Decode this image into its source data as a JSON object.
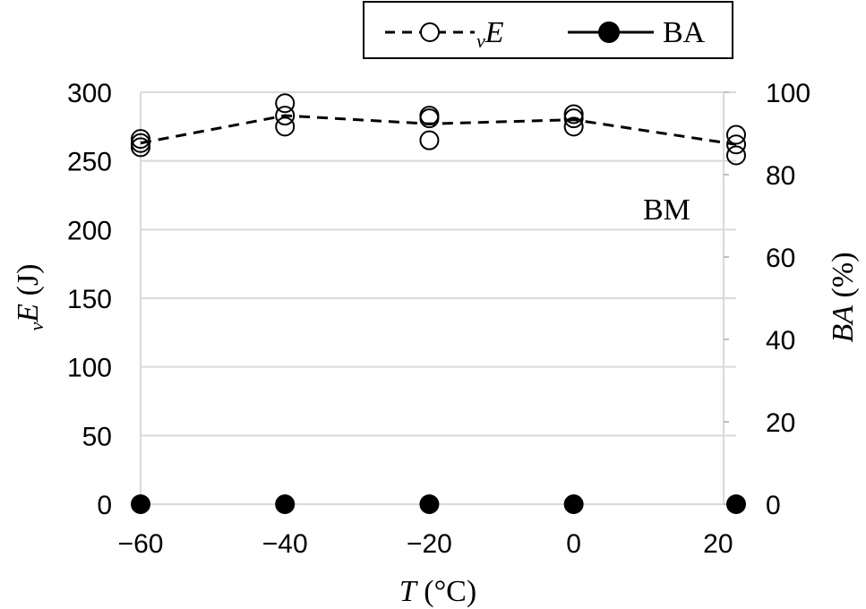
{
  "chart_data": {
    "type": "scatter",
    "annotation": "BM",
    "grid": true,
    "legend_position": "top-right",
    "x_axis": {
      "var": "T",
      "unit": " (°C)",
      "lim": [
        -60,
        22.5
      ],
      "ticks": [
        -60,
        -40,
        -20,
        0,
        20
      ],
      "tick_labels": [
        "−60",
        "−40",
        "−20",
        "0",
        "20"
      ]
    },
    "y_left": {
      "sub": "v",
      "var": "E",
      "unit": " (J)",
      "lim": [
        0,
        300
      ],
      "ticks": [
        0,
        50,
        100,
        150,
        200,
        250,
        300
      ],
      "tick_labels": [
        "0",
        "50",
        "100",
        "150",
        "200",
        "250",
        "300"
      ]
    },
    "y_right": {
      "var": "BA",
      "unit": " (%)",
      "lim": [
        0,
        100
      ],
      "ticks": [
        0,
        20,
        40,
        60,
        80,
        100
      ],
      "tick_labels": [
        "0",
        "20",
        "40",
        "60",
        "80",
        "100"
      ]
    },
    "series": [
      {
        "legend_sub": "v",
        "legend_var": "E",
        "axis": "left",
        "style": "open-circle-dashed",
        "color": "#000000",
        "points": [
          {
            "x": -60,
            "y": 266
          },
          {
            "x": -60,
            "y": 263
          },
          {
            "x": -60,
            "y": 260
          },
          {
            "x": -40,
            "y": 292
          },
          {
            "x": -40,
            "y": 283
          },
          {
            "x": -40,
            "y": 275
          },
          {
            "x": -20,
            "y": 283
          },
          {
            "x": -20,
            "y": 281
          },
          {
            "x": -20,
            "y": 265
          },
          {
            "x": 0,
            "y": 284
          },
          {
            "x": 0,
            "y": 281
          },
          {
            "x": 0,
            "y": 275
          },
          {
            "x": 22.5,
            "y": 269
          },
          {
            "x": 22.5,
            "y": 262
          },
          {
            "x": 22.5,
            "y": 254
          }
        ],
        "line": [
          {
            "x": -60,
            "y": 263
          },
          {
            "x": -40,
            "y": 283
          },
          {
            "x": -20,
            "y": 277
          },
          {
            "x": 0,
            "y": 280
          },
          {
            "x": 22.5,
            "y": 262
          }
        ]
      },
      {
        "name": "BA",
        "axis": "right",
        "style": "filled-circle-solid",
        "color": "#000000",
        "points": [
          {
            "x": -60,
            "y": 0
          },
          {
            "x": -40,
            "y": 0
          },
          {
            "x": -20,
            "y": 0
          },
          {
            "x": 0,
            "y": 0
          },
          {
            "x": 22.5,
            "y": 0
          }
        ]
      }
    ]
  }
}
